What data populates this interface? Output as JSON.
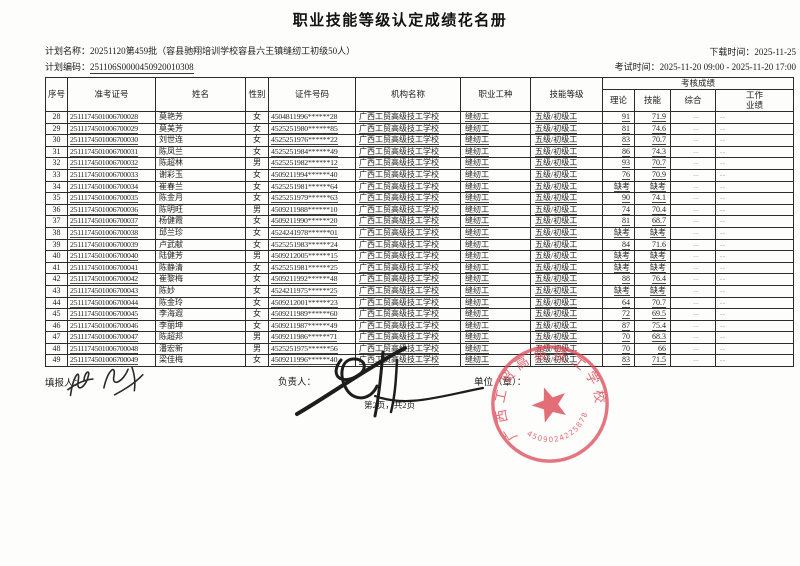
{
  "page": {
    "title": "职业技能等级认定成绩花名册"
  },
  "meta": {
    "plan_name_label": "计划名称：",
    "plan_name": "20251120第459批（容县驰翔培训学校容县六王镇缝纫工初级50人）",
    "plan_code_label": "计划编码：",
    "plan_code": "251106S0000450920010308",
    "download_label": "下载时间：",
    "download_time": "2025-11-25",
    "exam_label": "考试时间：",
    "exam_time": "2025-11-20 09:00 - 2025-11-20 17:00"
  },
  "table": {
    "columns": [
      "序号",
      "准考证号",
      "姓名",
      "性别",
      "证件号码",
      "机构名称",
      "职业工种",
      "技能等级"
    ],
    "score_group": "考核成绩",
    "score_columns": [
      "理论",
      "技能",
      "综合",
      "工作\n业绩"
    ],
    "rows": [
      [
        "28",
        "2511174501006700028",
        "莫艳芳",
        "女",
        "4504811996******28",
        "广西工贸高级技工学校",
        "缝纫工",
        "五级/初级工",
        "91",
        "71.9",
        "--",
        "--"
      ],
      [
        "29",
        "2511174501006700029",
        "莫美芳",
        "女",
        "4525251980******85",
        "广西工贸高级技工学校",
        "缝纫工",
        "五级/初级工",
        "81",
        "74.6",
        "--",
        "--"
      ],
      [
        "30",
        "2511174501006700030",
        "刘世连",
        "女",
        "4525251976******22",
        "广西工贸高级技工学校",
        "缝纫工",
        "五级/初级工",
        "83",
        "70.7",
        "--",
        "--"
      ],
      [
        "31",
        "2511174501006700031",
        "陈凤兰",
        "女",
        "4525251984******49",
        "广西工贸高级技工学校",
        "缝纫工",
        "五级/初级工",
        "86",
        "74.3",
        "--",
        "--"
      ],
      [
        "32",
        "2511174501006700032",
        "陈超林",
        "男",
        "4525251982******12",
        "广西工贸高级技工学校",
        "缝纫工",
        "五级/初级工",
        "93",
        "70.7",
        "--",
        "--"
      ],
      [
        "33",
        "2511174501006700033",
        "谢彩玉",
        "女",
        "4509211994******40",
        "广西工贸高级技工学校",
        "缝纫工",
        "五级/初级工",
        "76",
        "70.9",
        "--",
        "--"
      ],
      [
        "34",
        "2511174501006700034",
        "崔春兰",
        "女",
        "4525251981******64",
        "广西工贸高级技工学校",
        "缝纫工",
        "五级/初级工",
        "缺考",
        "缺考",
        "--",
        "--"
      ],
      [
        "35",
        "2511174501006700035",
        "陈金月",
        "女",
        "4525251979******63",
        "广西工贸高级技工学校",
        "缝纫工",
        "五级/初级工",
        "90",
        "74.1",
        "--",
        "--"
      ],
      [
        "36",
        "2511174501006700036",
        "陈明旺",
        "男",
        "4509211988******10",
        "广西工贸高级技工学校",
        "缝纫工",
        "五级/初级工",
        "74",
        "70.4",
        "--",
        "--"
      ],
      [
        "37",
        "2511174501006700037",
        "杨健霞",
        "女",
        "4509211990******20",
        "广西工贸高级技工学校",
        "缝纫工",
        "五级/初级工",
        "81",
        "68.7",
        "--",
        "--"
      ],
      [
        "38",
        "2511174501006700038",
        "邱兰珍",
        "女",
        "4524241978******01",
        "广西工贸高级技工学校",
        "缝纫工",
        "五级/初级工",
        "缺考",
        "缺考",
        "--",
        "--"
      ],
      [
        "39",
        "2511174501006700039",
        "卢武献",
        "女",
        "4525251983******24",
        "广西工贸高级技工学校",
        "缝纫工",
        "五级/初级工",
        "84",
        "71.6",
        "--",
        "--"
      ],
      [
        "40",
        "2511174501006700040",
        "陆健芳",
        "男",
        "4509212005******15",
        "广西工贸高级技工学校",
        "缝纫工",
        "五级/初级工",
        "缺考",
        "缺考",
        "--",
        "--"
      ],
      [
        "41",
        "2511174501006700041",
        "陈静清",
        "女",
        "4525251981******25",
        "广西工贸高级技工学校",
        "缝纫工",
        "五级/初级工",
        "缺考",
        "缺考",
        "--",
        "--"
      ],
      [
        "42",
        "2511174501006700042",
        "崔黎梅",
        "女",
        "4509211992******48",
        "广西工贸高级技工学校",
        "缝纫工",
        "五级/初级工",
        "88",
        "76.4",
        "--",
        "--"
      ],
      [
        "43",
        "2511174501006700043",
        "陈妙",
        "女",
        "4524211975******25",
        "广西工贸高级技工学校",
        "缝纫工",
        "五级/初级工",
        "缺考",
        "缺考",
        "--",
        "--"
      ],
      [
        "44",
        "2511174501006700044",
        "陈金玲",
        "女",
        "4509212001******23",
        "广西工贸高级技工学校",
        "缝纫工",
        "五级/初级工",
        "64",
        "70.7",
        "--",
        "--"
      ],
      [
        "45",
        "2511174501006700045",
        "李海遐",
        "女",
        "4509211989******60",
        "广西工贸高级技工学校",
        "缝纫工",
        "五级/初级工",
        "72",
        "69.5",
        "--",
        "--"
      ],
      [
        "46",
        "2511174501006700046",
        "李丽坤",
        "女",
        "4509211987******49",
        "广西工贸高级技工学校",
        "缝纫工",
        "五级/初级工",
        "87",
        "75.4",
        "--",
        "--"
      ],
      [
        "47",
        "2511174501006700047",
        "陈超邦",
        "男",
        "4509211986******71",
        "广西工贸高级技工学校",
        "缝纫工",
        "五级/初级工",
        "70",
        "68.3",
        "--",
        "--"
      ],
      [
        "48",
        "2511174501006700048",
        "潘宏新",
        "男",
        "4525251975******56",
        "广西工贸高级技工学校",
        "缝纫工",
        "五级/初级工",
        "70",
        "66",
        "--",
        "--"
      ],
      [
        "49",
        "2511174501006700049",
        "梁佳梅",
        "女",
        "4509211996******40",
        "广西工贸高级技工学校",
        "缝纫工",
        "五级/初级工",
        "83",
        "71.5",
        "--",
        "--"
      ]
    ]
  },
  "footer": {
    "filler_label": "填报人：",
    "manager_label": "负责人：",
    "unit_label": "单位（章）：",
    "page_info": "第2页，共2页",
    "stamp": {
      "org": "广西工贸高级技工学校",
      "number": "4509024225878"
    }
  }
}
